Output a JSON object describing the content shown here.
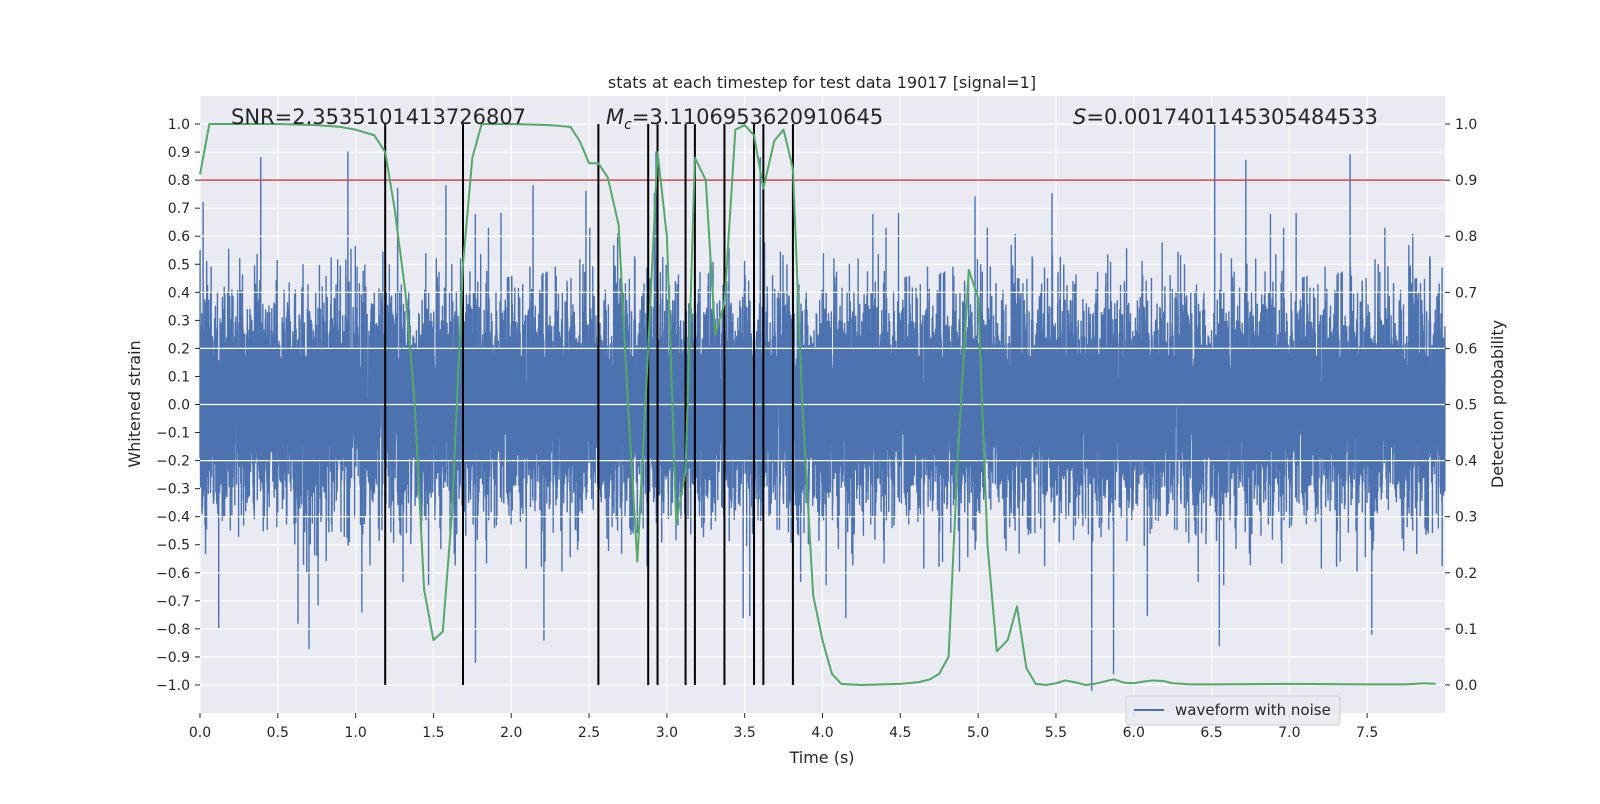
{
  "chart_data": {
    "type": "line",
    "title": "stats at each timestep for test data 19017 [signal=1]",
    "xlabel": "Time (s)",
    "ylabel": "Whitened strain",
    "y2label": "Detection probability",
    "xlim": [
      0.0,
      8.0
    ],
    "ylim": [
      -1.1,
      1.1
    ],
    "y2lim": [
      -0.05,
      1.05
    ],
    "xticks": [
      0.0,
      0.5,
      1.0,
      1.5,
      2.0,
      2.5,
      3.0,
      3.5,
      4.0,
      4.5,
      5.0,
      5.5,
      6.0,
      6.5,
      7.0,
      7.5
    ],
    "xtick_labels": [
      "0.0",
      "0.5",
      "1.0",
      "1.5",
      "2.0",
      "2.5",
      "3.0",
      "3.5",
      "4.0",
      "4.5",
      "5.0",
      "5.5",
      "6.0",
      "6.5",
      "7.0",
      "7.5"
    ],
    "yticks": [
      -1.0,
      -0.9,
      -0.8,
      -0.7,
      -0.6,
      -0.5,
      -0.4,
      -0.3,
      -0.2,
      -0.1,
      0.0,
      0.1,
      0.2,
      0.3,
      0.4,
      0.5,
      0.6,
      0.7,
      0.8,
      0.9,
      1.0
    ],
    "ytick_labels": [
      "−1.0",
      "−0.9",
      "−0.8",
      "−0.7",
      "−0.6",
      "−0.5",
      "−0.4",
      "−0.3",
      "−0.2",
      "−0.1",
      "0.0",
      "0.1",
      "0.2",
      "0.3",
      "0.4",
      "0.5",
      "0.6",
      "0.7",
      "0.8",
      "0.9",
      "1.0"
    ],
    "y2ticks": [
      0.0,
      0.1,
      0.2,
      0.3,
      0.4,
      0.5,
      0.6,
      0.7,
      0.8,
      0.9,
      1.0
    ],
    "y2tick_labels": [
      "0.0",
      "0.1",
      "0.2",
      "0.3",
      "0.4",
      "0.5",
      "0.6",
      "0.7",
      "0.8",
      "0.9",
      "1.0"
    ],
    "grid": true,
    "annotations": {
      "snr": "SNR=2.3535101413726807",
      "mc_symbol": "M",
      "mc_sub": "c",
      "mc_value": "=3.1106953620910645",
      "s_symbol": "S",
      "s_value": "=0.0017401145305484533"
    },
    "legend": {
      "location": "lower-right",
      "entries": [
        "waveform with noise"
      ]
    },
    "threshold_line": {
      "value": 0.9,
      "axis": "right",
      "color": "#c44e52"
    },
    "event_lines": [
      1.19,
      1.69,
      2.56,
      2.88,
      2.94,
      3.12,
      3.18,
      3.37,
      3.56,
      3.62,
      3.81
    ],
    "event_line_range": [
      -1.0,
      1.0
    ],
    "waveform": {
      "name": "waveform with noise",
      "color": "#4c72b0",
      "sample_rate": 2048,
      "duration": 8.0,
      "base_amplitude": 0.19,
      "peaks": [
        {
          "t": 0.02,
          "v": 0.72
        },
        {
          "t": 0.12,
          "v": -0.8
        },
        {
          "t": 0.39,
          "v": 0.88
        },
        {
          "t": 0.63,
          "v": -0.78
        },
        {
          "t": 0.7,
          "v": -0.87
        },
        {
          "t": 0.95,
          "v": 0.9
        },
        {
          "t": 1.04,
          "v": -0.74
        },
        {
          "t": 1.27,
          "v": 0.77
        },
        {
          "t": 1.58,
          "v": 0.78
        },
        {
          "t": 1.77,
          "v": -0.92
        },
        {
          "t": 2.14,
          "v": 0.78
        },
        {
          "t": 2.21,
          "v": -0.84
        },
        {
          "t": 2.48,
          "v": 0.76
        },
        {
          "t": 2.93,
          "v": 0.9
        },
        {
          "t": 3.12,
          "v": 0.88
        },
        {
          "t": 3.49,
          "v": -0.76
        },
        {
          "t": 3.6,
          "v": 0.88
        },
        {
          "t": 4.15,
          "v": -0.76
        },
        {
          "t": 4.98,
          "v": 0.74
        },
        {
          "t": 5.73,
          "v": -1.02
        },
        {
          "t": 5.87,
          "v": -0.96
        },
        {
          "t": 6.52,
          "v": 1.0
        },
        {
          "t": 6.55,
          "v": -0.86
        },
        {
          "t": 6.72,
          "v": 0.87
        },
        {
          "t": 7.39,
          "v": 0.89
        },
        {
          "t": 7.53,
          "v": -0.82
        }
      ]
    },
    "series": [
      {
        "name": "Detection probability",
        "axis": "right",
        "color": "#55a868",
        "x": [
          0.0,
          0.06,
          0.25,
          0.5,
          0.75,
          0.9,
          1.0,
          1.06,
          1.12,
          1.19,
          1.25,
          1.32,
          1.38,
          1.44,
          1.5,
          1.56,
          1.62,
          1.69,
          1.75,
          1.81,
          1.87,
          2.0,
          2.25,
          2.38,
          2.44,
          2.5,
          2.56,
          2.62,
          2.69,
          2.75,
          2.81,
          2.88,
          2.94,
          3.0,
          3.06,
          3.12,
          3.18,
          3.25,
          3.31,
          3.37,
          3.44,
          3.5,
          3.56,
          3.62,
          3.69,
          3.75,
          3.81,
          3.87,
          3.94,
          4.0,
          4.06,
          4.12,
          4.25,
          4.5,
          4.62,
          4.69,
          4.75,
          4.81,
          4.87,
          4.94,
          5.0,
          5.06,
          5.12,
          5.19,
          5.25,
          5.31,
          5.37,
          5.44,
          5.5,
          5.56,
          5.62,
          5.69,
          5.75,
          5.81,
          5.87,
          5.94,
          6.0,
          6.06,
          6.12,
          6.19,
          6.25,
          6.37,
          6.5,
          7.0,
          7.5,
          7.75,
          7.87,
          7.94
        ],
        "y": [
          0.91,
          1.0,
          1.0,
          1.0,
          0.998,
          0.995,
          0.99,
          0.985,
          0.98,
          0.95,
          0.85,
          0.7,
          0.5,
          0.17,
          0.08,
          0.095,
          0.31,
          0.75,
          0.94,
          1.0,
          1.0,
          1.0,
          0.998,
          0.995,
          0.97,
          0.93,
          0.93,
          0.905,
          0.82,
          0.5,
          0.22,
          0.6,
          0.95,
          0.8,
          0.29,
          0.38,
          0.94,
          0.9,
          0.625,
          0.68,
          0.99,
          0.998,
          0.98,
          0.885,
          0.97,
          0.99,
          0.92,
          0.5,
          0.16,
          0.08,
          0.02,
          0.002,
          0.0,
          0.002,
          0.005,
          0.01,
          0.02,
          0.05,
          0.41,
          0.74,
          0.69,
          0.25,
          0.06,
          0.08,
          0.14,
          0.03,
          0.002,
          0.0,
          0.003,
          0.008,
          0.005,
          0.0,
          0.002,
          0.006,
          0.01,
          0.004,
          0.003,
          0.006,
          0.008,
          0.007,
          0.003,
          0.001,
          0.001,
          0.002,
          0.001,
          0.001,
          0.003,
          0.002
        ]
      }
    ]
  }
}
